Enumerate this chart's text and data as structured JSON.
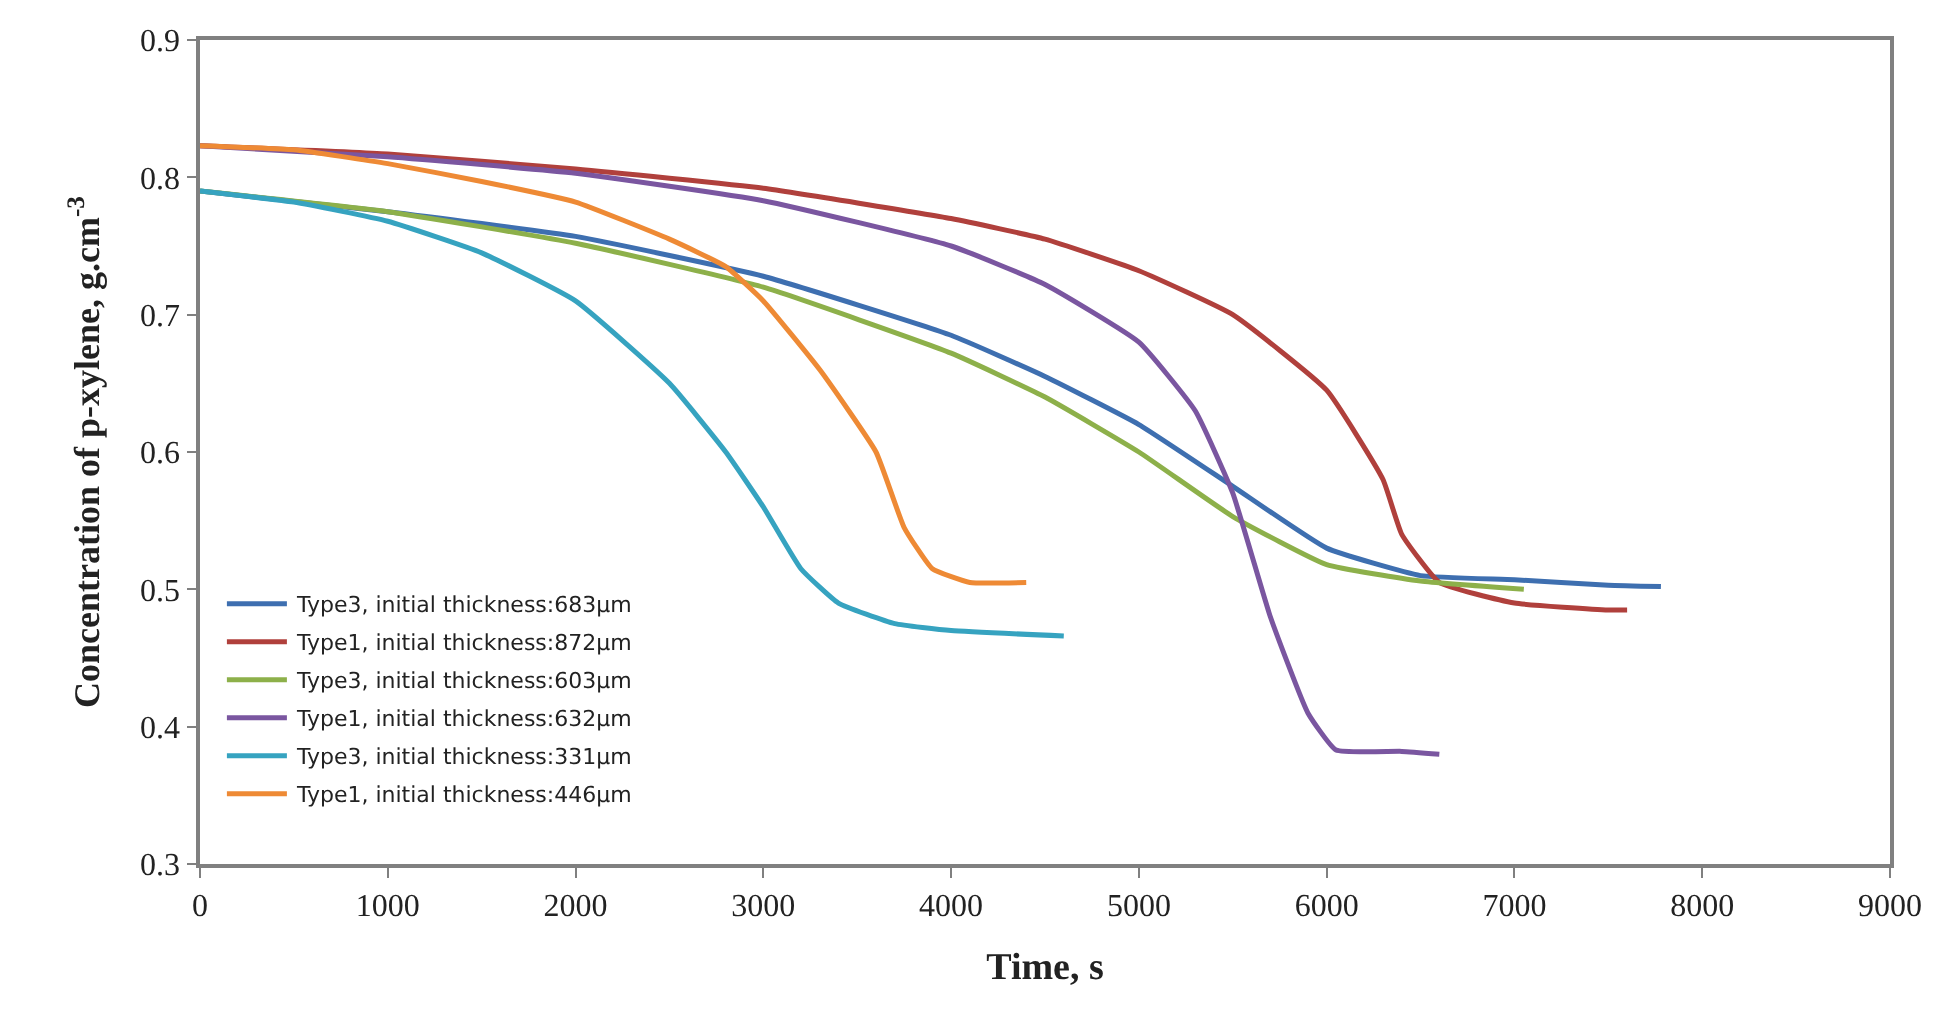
{
  "chart_data": {
    "type": "line",
    "xlabel": "Time, s",
    "ylabel": "Concentration of p-xylene, g.cm$^{-3}$",
    "xlim": [
      0,
      9000
    ],
    "xticks": [
      0,
      1000,
      2000,
      3000,
      4000,
      5000,
      6000,
      7000,
      8000,
      9000
    ],
    "ylim": [
      0.3,
      0.9
    ],
    "yticks": [
      0.3,
      0.4,
      0.5,
      0.6,
      0.7,
      0.8,
      0.9
    ],
    "legend": "bottom left",
    "marker": "none",
    "line_style": "solid",
    "series": [
      {
        "name": "Type3, initial thickness:683µm",
        "color": "#3e6fb0",
        "x": [
          0,
          1000,
          2000,
          3000,
          4000,
          4500,
          5000,
          5500,
          6000,
          6500,
          7000,
          7500,
          7780
        ],
        "values": [
          0.79,
          0.775,
          0.757,
          0.728,
          0.685,
          0.655,
          0.62,
          0.575,
          0.53,
          0.51,
          0.507,
          0.503,
          0.502
        ]
      },
      {
        "name": "Type1, initial thickness:872µm",
        "color": "#b0403c",
        "x": [
          0,
          1000,
          2000,
          3000,
          4000,
          4500,
          5000,
          5500,
          6000,
          6300,
          6400,
          6600,
          7000,
          7500,
          7600
        ],
        "values": [
          0.823,
          0.817,
          0.806,
          0.792,
          0.77,
          0.755,
          0.732,
          0.7,
          0.645,
          0.58,
          0.54,
          0.505,
          0.49,
          0.485,
          0.485
        ]
      },
      {
        "name": "Type3, initial thickness:603µm",
        "color": "#8db04a",
        "x": [
          0,
          1000,
          2000,
          3000,
          4000,
          4500,
          5000,
          5500,
          6000,
          6500,
          7050
        ],
        "values": [
          0.79,
          0.775,
          0.752,
          0.72,
          0.672,
          0.64,
          0.6,
          0.553,
          0.518,
          0.506,
          0.5
        ]
      },
      {
        "name": "Type1, initial thickness:632µm",
        "color": "#7a56a0",
        "x": [
          0,
          1000,
          2000,
          3000,
          4000,
          4500,
          5000,
          5300,
          5500,
          5700,
          5900,
          6050,
          6400,
          6600
        ],
        "values": [
          0.823,
          0.815,
          0.803,
          0.783,
          0.75,
          0.722,
          0.68,
          0.63,
          0.57,
          0.48,
          0.41,
          0.383,
          0.382,
          0.38
        ]
      },
      {
        "name": "Type3, initial thickness:331µm",
        "color": "#36a3c0",
        "x": [
          0,
          500,
          1000,
          1500,
          2000,
          2500,
          2800,
          3000,
          3200,
          3400,
          3700,
          4000,
          4600
        ],
        "values": [
          0.79,
          0.782,
          0.768,
          0.745,
          0.71,
          0.65,
          0.6,
          0.56,
          0.515,
          0.49,
          0.475,
          0.47,
          0.466
        ]
      },
      {
        "name": "Type1, initial thickness:446µm",
        "color": "#ee8a35",
        "x": [
          0,
          500,
          1000,
          1500,
          2000,
          2500,
          2800,
          3000,
          3300,
          3600,
          3750,
          3900,
          4100,
          4400
        ],
        "values": [
          0.823,
          0.82,
          0.81,
          0.797,
          0.782,
          0.755,
          0.735,
          0.71,
          0.66,
          0.6,
          0.545,
          0.515,
          0.505,
          0.505
        ]
      }
    ]
  }
}
